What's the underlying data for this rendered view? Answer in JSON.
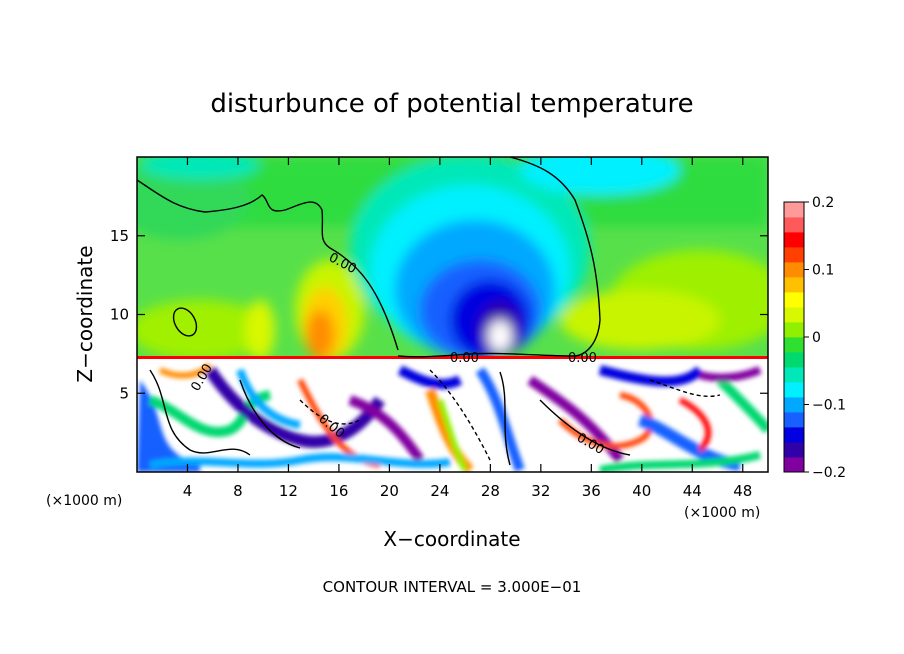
{
  "chart_data": {
    "type": "heatmap",
    "title": "disturbunce of potential temperature",
    "xlabel": "X−coordinate",
    "ylabel": "Z−coordinate",
    "x_unit_left": "(×1000 m)",
    "x_unit_right": "(×1000 m)",
    "xlim": [
      0,
      50
    ],
    "ylim": [
      0,
      20
    ],
    "x_ticks": [
      "4",
      "8",
      "12",
      "16",
      "20",
      "24",
      "28",
      "32",
      "36",
      "40",
      "44",
      "48"
    ],
    "y_ticks": [
      "5",
      "10",
      "15"
    ],
    "colorbar": {
      "range": [
        -0.2,
        0.2
      ],
      "tick_labels": [
        "0.2",
        "0.1",
        "0",
        "−0.1",
        "−0.2"
      ],
      "colors": [
        "#8000a0",
        "#3000a8",
        "#0000e0",
        "#1860ff",
        "#00a8ff",
        "#00f0ff",
        "#00e8b8",
        "#00d870",
        "#30e030",
        "#90f000",
        "#d8f800",
        "#ffff00",
        "#ffc000",
        "#ff8c00",
        "#ff4000",
        "#ff0000",
        "#ff5a5a",
        "#ff9a9a"
      ]
    },
    "contour_labels": [
      "0.00",
      "0.00",
      "0.00",
      "0.00",
      "0.00",
      "0.00"
    ],
    "footer": "CONTOUR INTERVAL = 3.000E−01"
  }
}
